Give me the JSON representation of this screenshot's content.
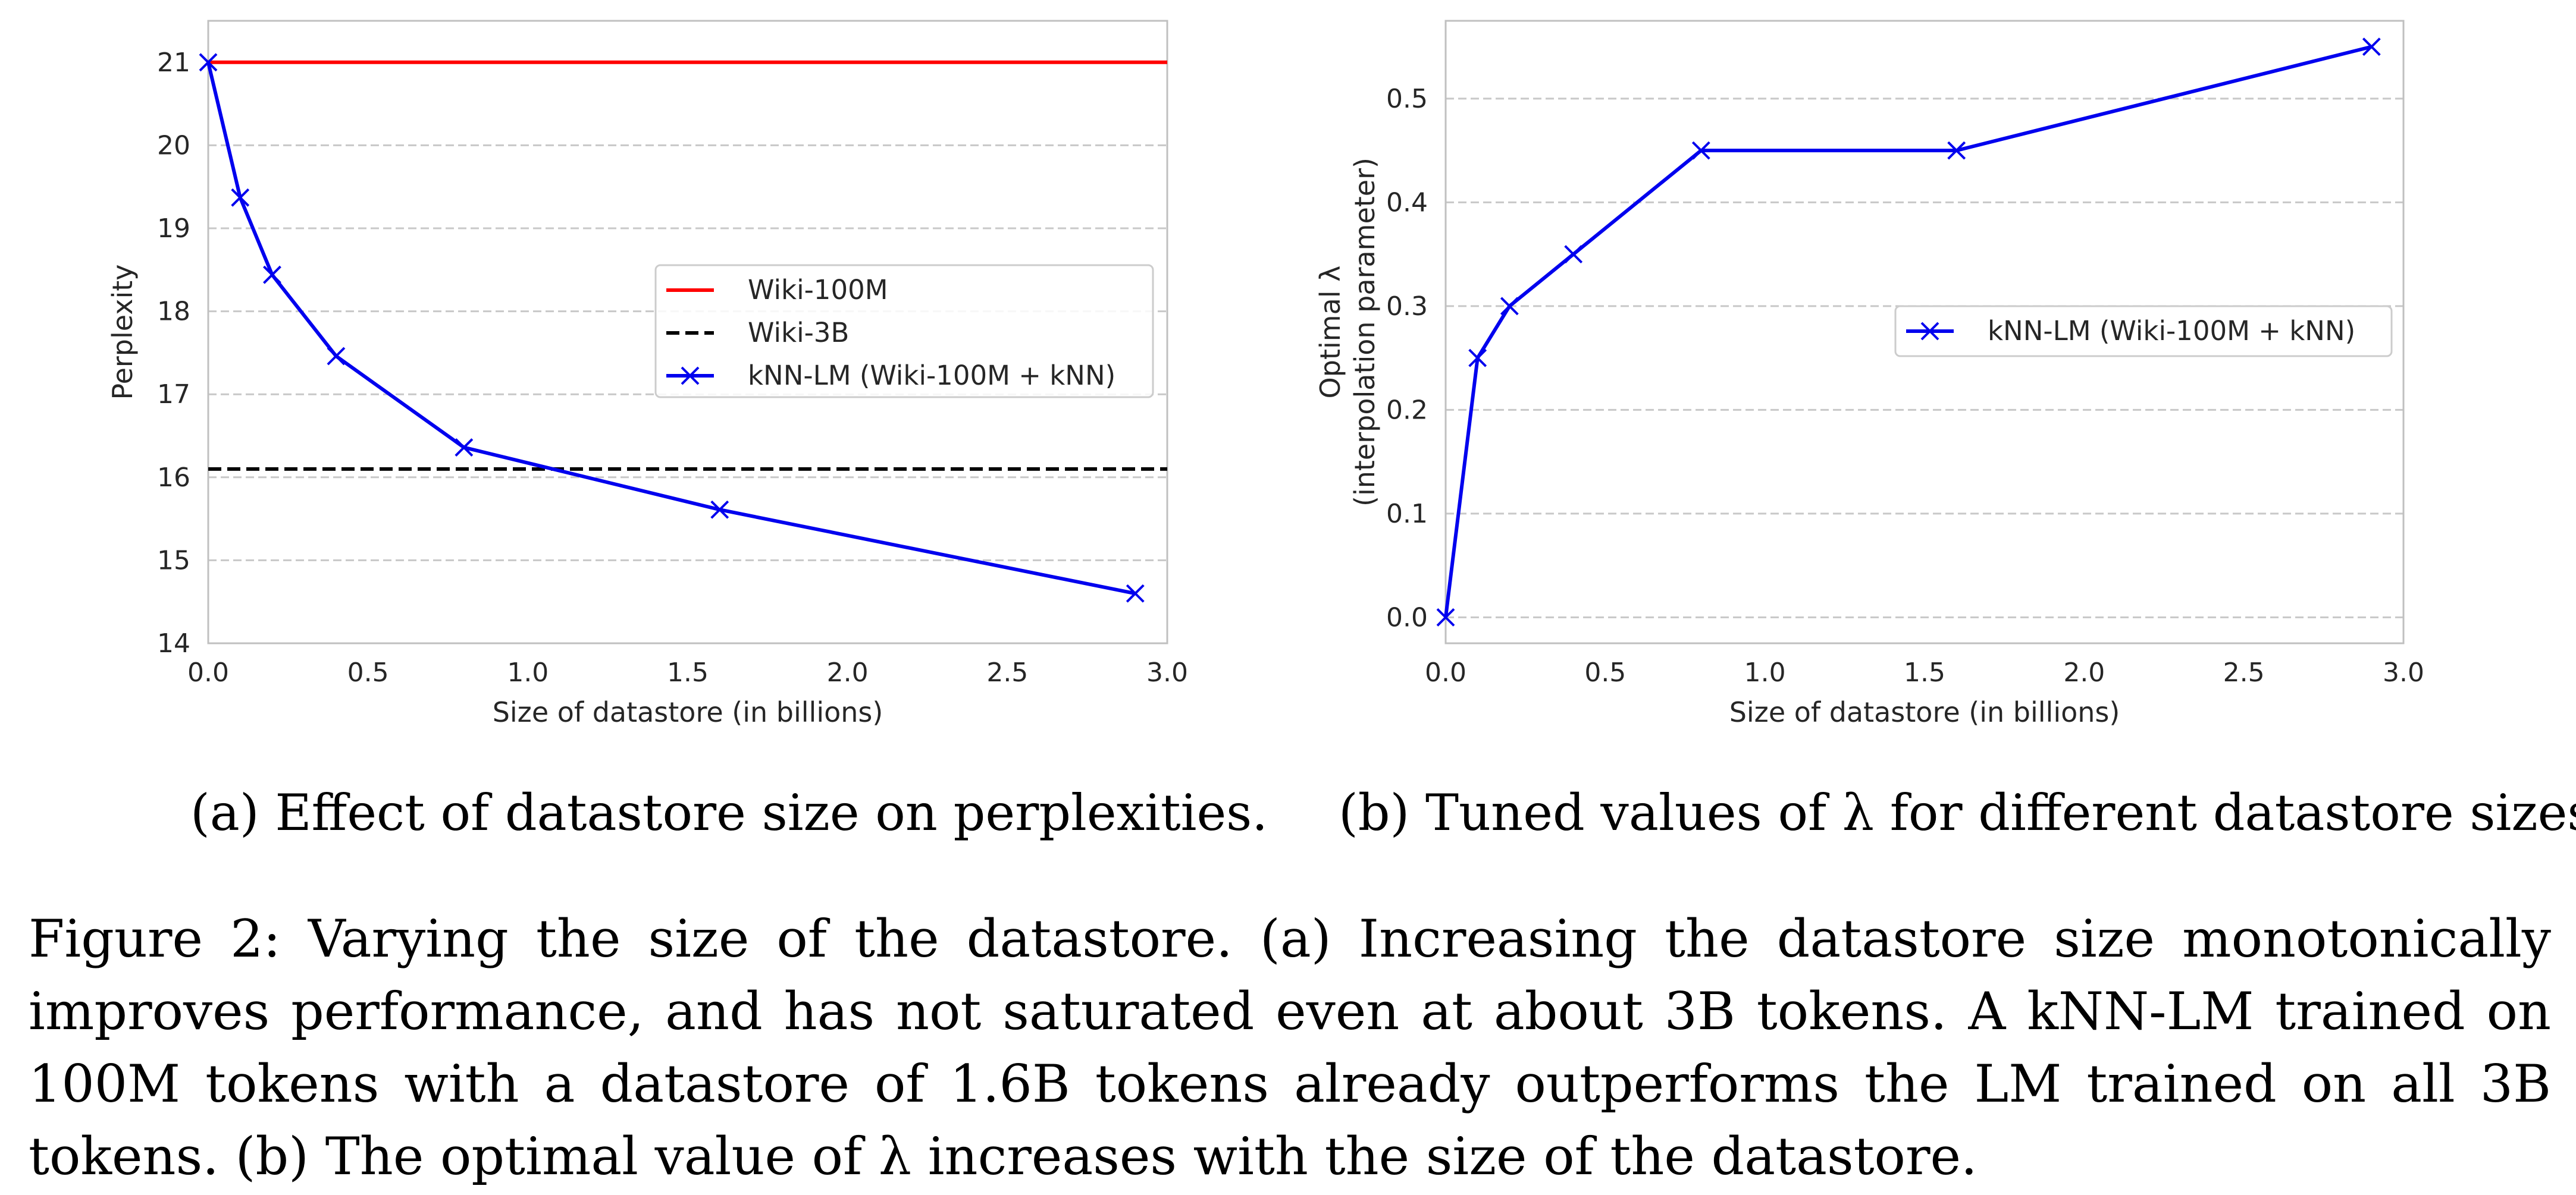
{
  "chart_data": [
    {
      "type": "line",
      "xlabel": "Size of datastore (in billions)",
      "ylabel": "Perplexity",
      "xlim": [
        0.0,
        3.0
      ],
      "ylim": [
        14,
        21.5
      ],
      "xticks": [
        "0.0",
        "0.5",
        "1.0",
        "1.5",
        "2.0",
        "2.5",
        "3.0"
      ],
      "yticks": [
        "14",
        "15",
        "16",
        "17",
        "18",
        "19",
        "20",
        "21"
      ],
      "grid": "horizontal dashed",
      "legend_position": "center-right",
      "series": [
        {
          "name": "Wiki-100M",
          "style": "solid",
          "color": "#ff0000",
          "x": [
            0.0,
            3.0
          ],
          "y": [
            21.0,
            21.0
          ]
        },
        {
          "name": "Wiki-3B",
          "style": "dashed",
          "color": "#000000",
          "x": [
            0.0,
            3.0
          ],
          "y": [
            16.1,
            16.1
          ]
        },
        {
          "name": "kNN-LM (Wiki-100M + kNN)",
          "style": "solid",
          "marker": "x",
          "color": "#0000ee",
          "x": [
            0.0,
            0.1,
            0.2,
            0.4,
            0.8,
            1.6,
            2.9
          ],
          "y": [
            21.0,
            19.37,
            18.44,
            17.46,
            16.36,
            15.61,
            14.6
          ]
        }
      ]
    },
    {
      "type": "line",
      "xlabel": "Size of datastore (in billions)",
      "ylabel": "Optimal λ (interpolation parameter)",
      "ylabel_lines": [
        "Optimal λ",
        "(interpolation parameter)"
      ],
      "xlim": [
        0.0,
        3.0
      ],
      "ylim": [
        -0.025,
        0.575
      ],
      "xticks": [
        "0.0",
        "0.5",
        "1.0",
        "1.5",
        "2.0",
        "2.5",
        "3.0"
      ],
      "yticks": [
        "0.0",
        "0.1",
        "0.2",
        "0.3",
        "0.4",
        "0.5"
      ],
      "grid": "horizontal dashed",
      "legend_position": "center-right",
      "series": [
        {
          "name": "kNN-LM (Wiki-100M + kNN)",
          "style": "solid",
          "marker": "x",
          "color": "#0000ee",
          "x": [
            0.0,
            0.1,
            0.2,
            0.4,
            0.8,
            1.6,
            2.9
          ],
          "y": [
            0.0,
            0.25,
            0.3,
            0.35,
            0.45,
            0.45,
            0.55
          ]
        }
      ]
    }
  ],
  "captions": {
    "sub_a": "(a) Effect of datastore size on perplexities.",
    "sub_b": "(b) Tuned values of λ for different datastore sizes.",
    "figure": "Figure 2: Varying the size of the datastore. (a) Increasing the datastore size monotonically improves performance, and has not saturated even at about 3B tokens. A kNN-LM trained on 100M tokens with a datastore of 1.6B tokens already outperforms the LM trained on all 3B tokens. (b) The optimal value of λ increases with the size of the datastore."
  }
}
